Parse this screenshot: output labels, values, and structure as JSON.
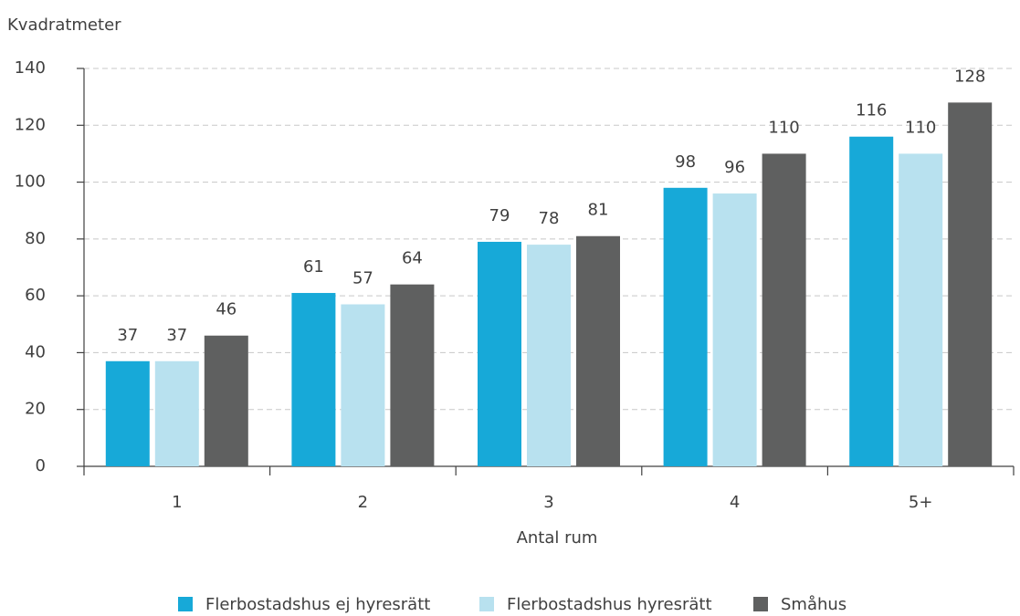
{
  "chart_data": {
    "type": "bar",
    "y_label": "Kvadratmeter",
    "x_label": "Antal rum",
    "categories": [
      "1",
      "2",
      "3",
      "4",
      "5+"
    ],
    "series": [
      {
        "name": "Flerbostadshus ej hyresrätt",
        "color": "#17a9d8",
        "values": [
          37,
          61,
          79,
          98,
          116
        ]
      },
      {
        "name": "Flerbostadshus hyresrätt",
        "color": "#b8e1ef",
        "values": [
          37,
          57,
          78,
          96,
          110
        ]
      },
      {
        "name": "Småhus",
        "color": "#5f6060",
        "values": [
          46,
          64,
          81,
          110,
          128
        ]
      }
    ],
    "ylim": [
      0,
      140
    ],
    "yticks": [
      0,
      20,
      40,
      60,
      80,
      100,
      120,
      140
    ],
    "grid": true
  }
}
